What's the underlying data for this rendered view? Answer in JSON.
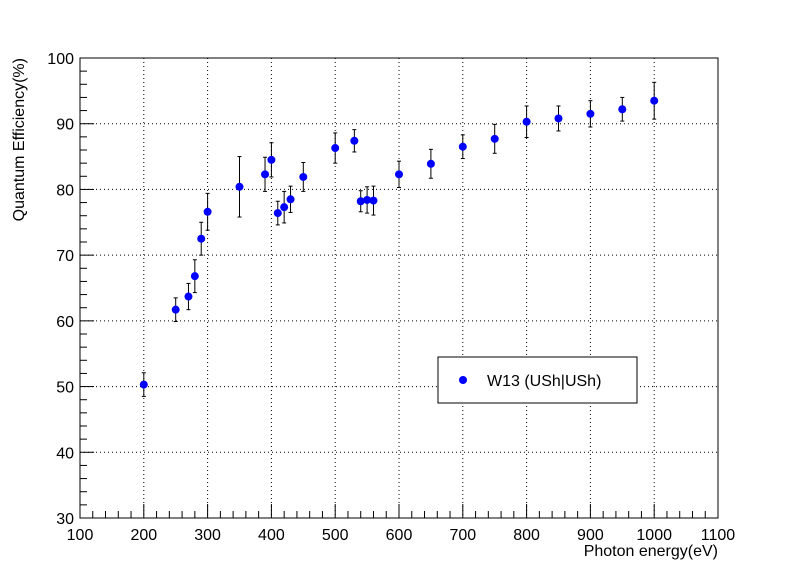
{
  "chart_data": {
    "type": "scatter",
    "title": "",
    "xlabel": "Photon energy(eV)",
    "ylabel": "Quantum Efficiency(%)",
    "xlim": [
      100,
      1100
    ],
    "ylim": [
      30,
      100
    ],
    "x_ticks": [
      "100",
      "200",
      "300",
      "400",
      "500",
      "600",
      "700",
      "800",
      "900",
      "1000",
      "1100"
    ],
    "y_ticks": [
      "30",
      "40",
      "50",
      "60",
      "70",
      "80",
      "90",
      "100"
    ],
    "grid": true,
    "legend_position": "right",
    "series": [
      {
        "name": "W13 (USh|USh)",
        "color": "#0000ff",
        "marker": "circle",
        "points": [
          {
            "x": 200,
            "y": 50.3,
            "err": 1.8
          },
          {
            "x": 250,
            "y": 61.7,
            "err": 1.8
          },
          {
            "x": 270,
            "y": 63.7,
            "err": 2.0
          },
          {
            "x": 280,
            "y": 66.8,
            "err": 2.5
          },
          {
            "x": 290,
            "y": 72.5,
            "err": 2.5
          },
          {
            "x": 300,
            "y": 76.6,
            "err": 2.8
          },
          {
            "x": 350,
            "y": 80.4,
            "err": 4.6
          },
          {
            "x": 390,
            "y": 82.3,
            "err": 2.6
          },
          {
            "x": 400,
            "y": 84.5,
            "err": 2.6
          },
          {
            "x": 410,
            "y": 76.4,
            "err": 1.8
          },
          {
            "x": 420,
            "y": 77.3,
            "err": 2.4
          },
          {
            "x": 430,
            "y": 78.5,
            "err": 2.0
          },
          {
            "x": 450,
            "y": 81.9,
            "err": 2.2
          },
          {
            "x": 500,
            "y": 86.3,
            "err": 2.3
          },
          {
            "x": 530,
            "y": 87.4,
            "err": 1.7
          },
          {
            "x": 540,
            "y": 78.2,
            "err": 1.6
          },
          {
            "x": 550,
            "y": 78.4,
            "err": 2.0
          },
          {
            "x": 560,
            "y": 78.3,
            "err": 2.2
          },
          {
            "x": 600,
            "y": 82.3,
            "err": 2.0
          },
          {
            "x": 650,
            "y": 83.9,
            "err": 2.2
          },
          {
            "x": 700,
            "y": 86.5,
            "err": 1.8
          },
          {
            "x": 750,
            "y": 87.7,
            "err": 2.2
          },
          {
            "x": 800,
            "y": 90.3,
            "err": 2.4
          },
          {
            "x": 850,
            "y": 90.8,
            "err": 1.9
          },
          {
            "x": 900,
            "y": 91.5,
            "err": 2.0
          },
          {
            "x": 950,
            "y": 92.2,
            "err": 1.8
          },
          {
            "x": 1000,
            "y": 93.5,
            "err": 2.8
          }
        ]
      }
    ]
  }
}
